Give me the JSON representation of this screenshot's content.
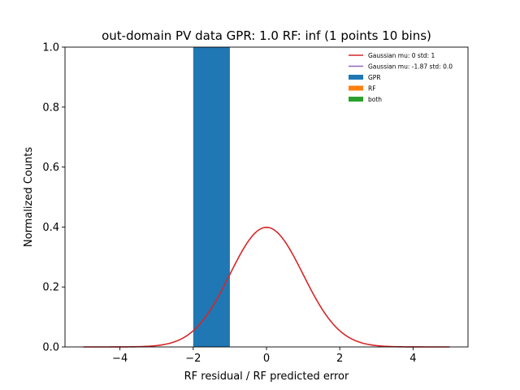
{
  "chart_data": {
    "type": "bar",
    "title": "out-domain PV data GPR: 1.0 RF: inf (1 points 10 bins)",
    "xlabel": "RF residual / RF predicted error",
    "ylabel": "Normalized Counts",
    "xlim": [
      -5.5,
      5.5
    ],
    "ylim": [
      0,
      1.0
    ],
    "x_ticks": [
      -4,
      -2,
      0,
      2,
      4
    ],
    "x_tick_labels": [
      "−4",
      "−2",
      "0",
      "2",
      "4"
    ],
    "y_ticks": [
      0.0,
      0.2,
      0.4,
      0.6,
      0.8,
      1.0
    ],
    "y_tick_labels": [
      "0.0",
      "0.2",
      "0.4",
      "0.6",
      "0.8",
      "1.0"
    ],
    "grid": false,
    "legend_position": "top-right",
    "histograms": [
      {
        "name": "GPR",
        "color": "#1f77b4",
        "bins": [
          {
            "x0": -2.0,
            "x1": -1.0,
            "value": 1.0
          }
        ]
      },
      {
        "name": "RF",
        "color": "#ff7f0e",
        "bins": []
      },
      {
        "name": "both",
        "color": "#2ca02c",
        "bins": []
      }
    ],
    "lines": [
      {
        "name": "Gaussian mu: 0 std: 1",
        "color": "#d62728",
        "mu": 0,
        "std": 1,
        "x_range": [
          -5,
          5
        ]
      },
      {
        "name": "Gaussian mu: -1.87 std: 0.0",
        "color": "#9467bd",
        "mu": -1.87,
        "std": 0.0,
        "x_range": [
          -5,
          5
        ]
      }
    ]
  }
}
